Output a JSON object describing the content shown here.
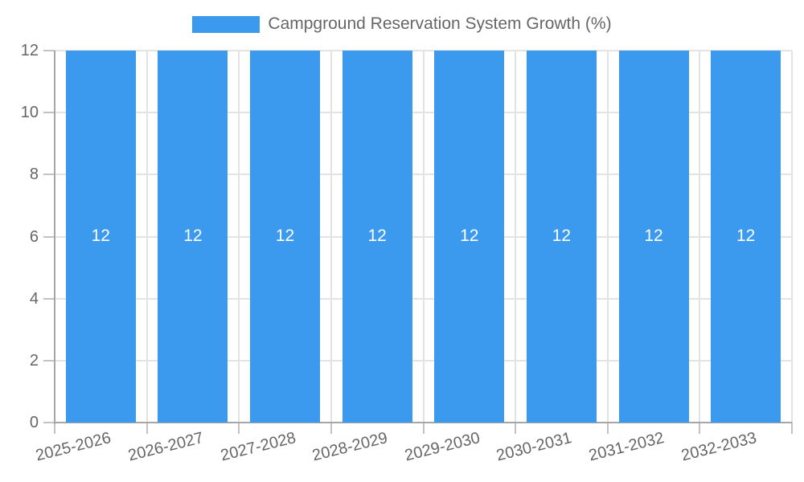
{
  "legend": {
    "label": "Campground Reservation System Growth (%)"
  },
  "chart_data": {
    "type": "bar",
    "title": "Campground Reservation System Growth (%)",
    "categories": [
      "2025-2026",
      "2026-2027",
      "2027-2028",
      "2028-2029",
      "2029-2030",
      "2030-2031",
      "2031-2032",
      "2032-2033"
    ],
    "series": [
      {
        "name": "Campground Reservation System Growth (%)",
        "values": [
          12,
          12,
          12,
          12,
          12,
          12,
          12,
          12
        ]
      }
    ],
    "value_labels": [
      "12",
      "12",
      "12",
      "12",
      "12",
      "12",
      "12",
      "12"
    ],
    "xlabel": "",
    "ylabel": "",
    "ylim": [
      0,
      12
    ],
    "yticks": [
      0,
      2,
      4,
      6,
      8,
      10,
      12
    ],
    "grid": true,
    "legend_position": "top",
    "show_values_inside_bars": true
  },
  "colors": {
    "bar": "#3B99EE",
    "value_label": "#ffffff",
    "text": "#666666",
    "grid": "#e3e3e3",
    "tick": "#c2c2c2",
    "axis": "#a6a6a6",
    "background": "#ffffff"
  }
}
